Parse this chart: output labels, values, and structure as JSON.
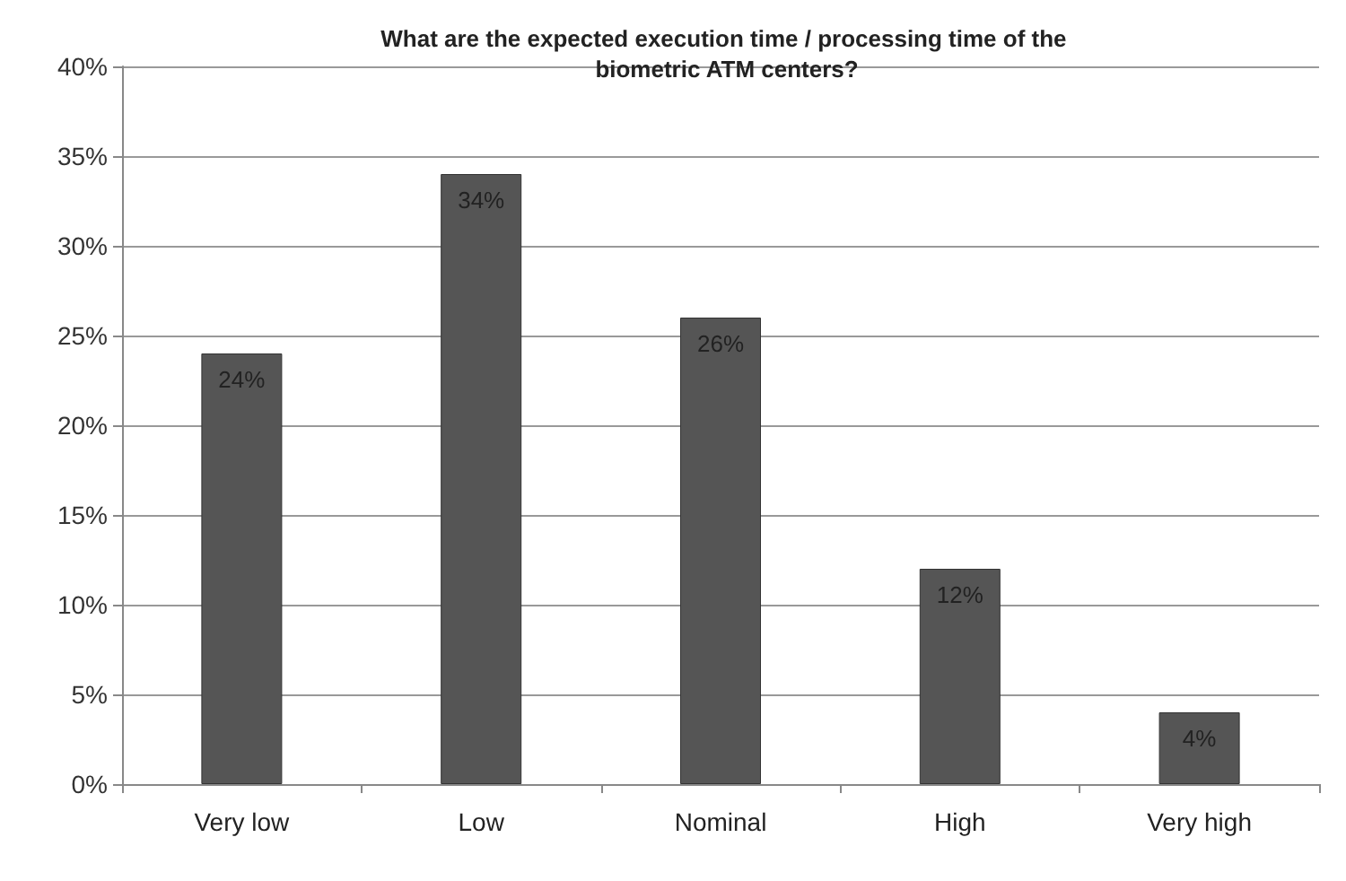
{
  "chart_data": {
    "type": "bar",
    "title": "What are the expected execution time / processing time of the biometric ATM centers?",
    "categories": [
      "Very low",
      "Low",
      "Nominal",
      "High",
      "Very high"
    ],
    "values": [
      24,
      34,
      26,
      12,
      4
    ],
    "value_labels": [
      "24%",
      "34%",
      "26%",
      "12%",
      "4%"
    ],
    "color": "#555555",
    "ylim": [
      0,
      40
    ],
    "yticks": [
      {
        "value": 0,
        "label": "0%"
      },
      {
        "value": 5,
        "label": "5%"
      },
      {
        "value": 10,
        "label": "10%"
      },
      {
        "value": 15,
        "label": "15%"
      },
      {
        "value": 20,
        "label": "20%"
      },
      {
        "value": 25,
        "label": "25%"
      },
      {
        "value": 30,
        "label": "30%"
      },
      {
        "value": 35,
        "label": "35%"
      },
      {
        "value": 40,
        "label": "40%"
      }
    ],
    "grid": "y"
  }
}
